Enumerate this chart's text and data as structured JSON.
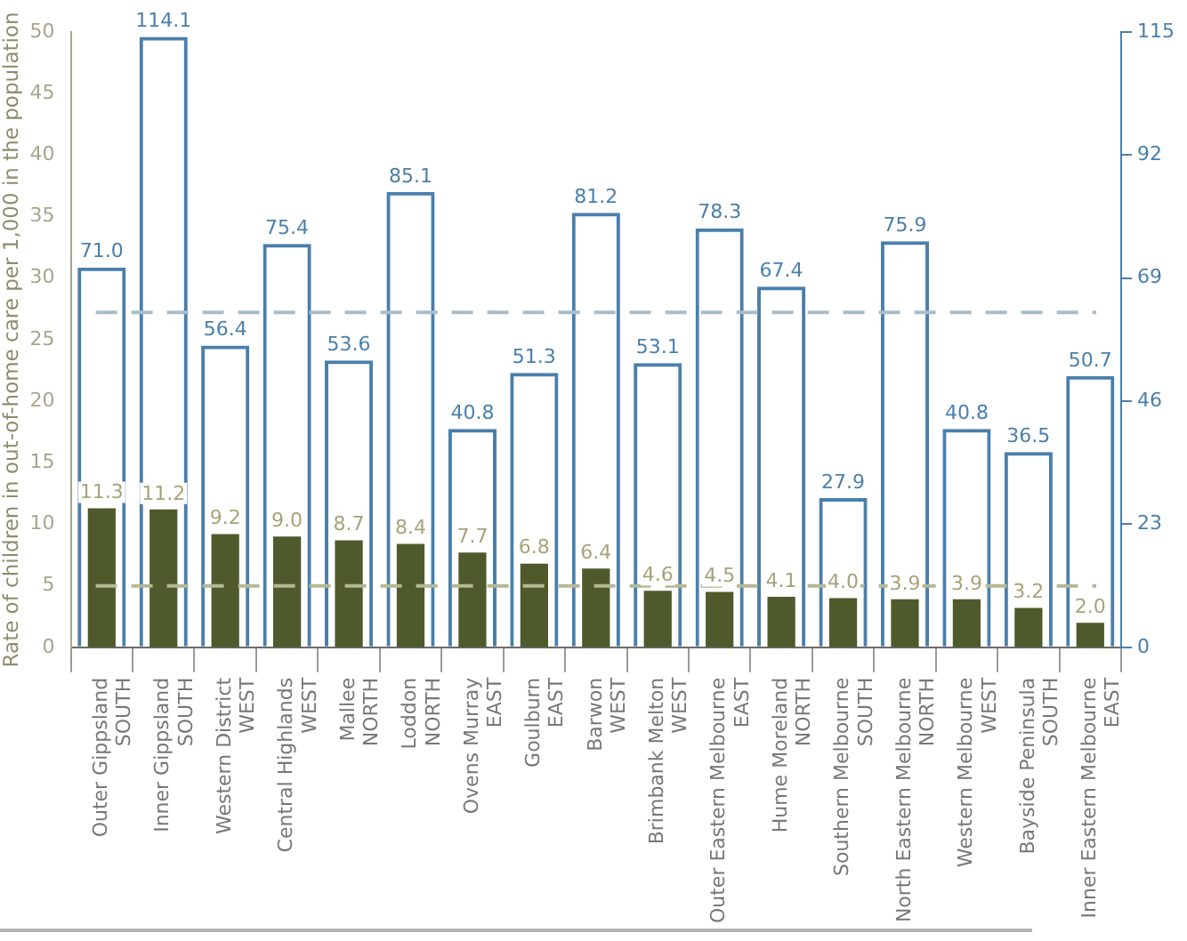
{
  "chart_data": {
    "type": "bar",
    "ylabel": "Rate of children in out-of-home care per 1,000 in the population",
    "categories": [
      "Outer Gippsland\nSOUTH",
      "Inner Gippsland\nSOUTH",
      "Western District\nWEST",
      "Central Highlands\nWEST",
      "Mallee\nNORTH",
      "Loddon\nNORTH",
      "Ovens Murray\nEAST",
      "Goulburn\nEAST",
      "Barwon\nWEST",
      "Brimbank Melton\nWEST",
      "Outer Eastern Melbourne\nEAST",
      "Hume Moreland\nNORTH",
      "Southern Melbourne\nSOUTH",
      "North Eastern Melbourne\nNORTH",
      "Western Melbourne\nWEST",
      "Bayside Peninsula\nSOUTH",
      "Inner Eastern Melbourne\nEAST"
    ],
    "series": [
      {
        "color": "#4a7fab",
        "axis": "y2",
        "values": [
          71.0,
          114.1,
          56.4,
          75.4,
          53.6,
          85.1,
          40.8,
          51.3,
          81.2,
          53.1,
          78.3,
          67.4,
          27.9,
          75.9,
          40.8,
          36.5,
          50.7
        ],
        "value_labels": [
          "71.0",
          "114.1",
          "56.4",
          "75.4",
          "53.6",
          "85.1",
          "40.8",
          "51.3",
          "81.2",
          "53.1",
          "78.3",
          "67.4",
          "27.9",
          "75.9",
          "40.8",
          "36.5",
          "50.7"
        ]
      },
      {
        "color": "#4e5a2b",
        "axis": "y",
        "values": [
          11.3,
          11.2,
          9.2,
          9.0,
          8.7,
          8.4,
          7.7,
          6.8,
          6.4,
          4.6,
          4.5,
          4.1,
          4.0,
          3.9,
          3.9,
          3.2,
          2.0
        ],
        "value_labels": [
          "11.3",
          "11.2",
          "9.2",
          "9.0",
          "8.7",
          "8.4",
          "7.7",
          "6.8",
          "6.4",
          "4.6",
          "4.5",
          "4.1",
          "4.0",
          "3.9",
          "3.9",
          "3.2",
          "2.0"
        ]
      }
    ],
    "ylim": [
      0,
      50
    ],
    "yticks": [
      0,
      5,
      10,
      15,
      20,
      25,
      30,
      35,
      40,
      45,
      50
    ],
    "y2lim": [
      0,
      115
    ],
    "y2ticks": [
      0,
      23,
      46,
      69,
      92,
      115
    ],
    "ref_lines": [
      {
        "axis": "y2",
        "value": 62.6,
        "color": "#a9bccb",
        "line_style": "dashed"
      },
      {
        "axis": "y",
        "value": 5,
        "color": "#b4b895",
        "line_style": "dashed"
      }
    ],
    "grid": false,
    "legend": false
  }
}
